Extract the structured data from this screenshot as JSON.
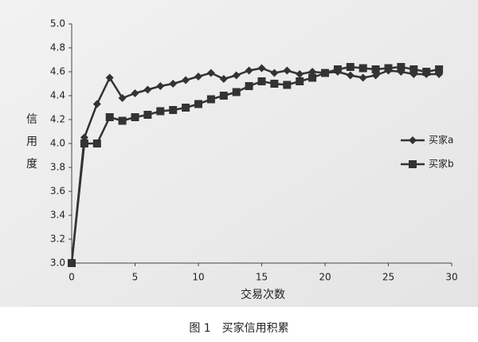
{
  "chart_data": {
    "type": "line",
    "x_label": "交易次数",
    "y_label": "信用度",
    "caption": "图 1　买家信用积累",
    "x": [
      0,
      1,
      2,
      3,
      4,
      5,
      6,
      7,
      8,
      9,
      10,
      11,
      12,
      13,
      14,
      15,
      16,
      17,
      18,
      19,
      20,
      21,
      22,
      23,
      24,
      25,
      26,
      27,
      28,
      29
    ],
    "series": [
      {
        "name": "买家a",
        "color": "#333333",
        "marker": "diamond",
        "values": [
          3.0,
          4.05,
          4.33,
          4.55,
          4.38,
          4.42,
          4.45,
          4.48,
          4.5,
          4.53,
          4.56,
          4.59,
          4.54,
          4.57,
          4.61,
          4.63,
          4.59,
          4.61,
          4.58,
          4.6,
          4.59,
          4.6,
          4.57,
          4.55,
          4.57,
          4.61,
          4.6,
          4.58,
          4.58,
          4.58
        ]
      },
      {
        "name": "买家b",
        "color": "#333333",
        "marker": "square",
        "values": [
          3.0,
          4.0,
          4.0,
          4.22,
          4.19,
          4.22,
          4.24,
          4.27,
          4.28,
          4.3,
          4.33,
          4.37,
          4.4,
          4.43,
          4.48,
          4.52,
          4.5,
          4.49,
          4.52,
          4.55,
          4.59,
          4.62,
          4.64,
          4.63,
          4.62,
          4.63,
          4.64,
          4.62,
          4.6,
          4.62
        ]
      }
    ],
    "xlim": [
      0,
      30
    ],
    "xticks": [
      0,
      5,
      10,
      15,
      20,
      25,
      30
    ],
    "ylim": [
      3,
      5
    ],
    "yticks": [
      {
        "value": 3,
        "label": "3.0"
      },
      3.2,
      3.4,
      3.6,
      3.8,
      {
        "value": 4,
        "label": "4.0"
      },
      4.2,
      4.4,
      4.6,
      4.8,
      {
        "value": 5,
        "label": "5.0"
      }
    ],
    "legend": "right"
  }
}
